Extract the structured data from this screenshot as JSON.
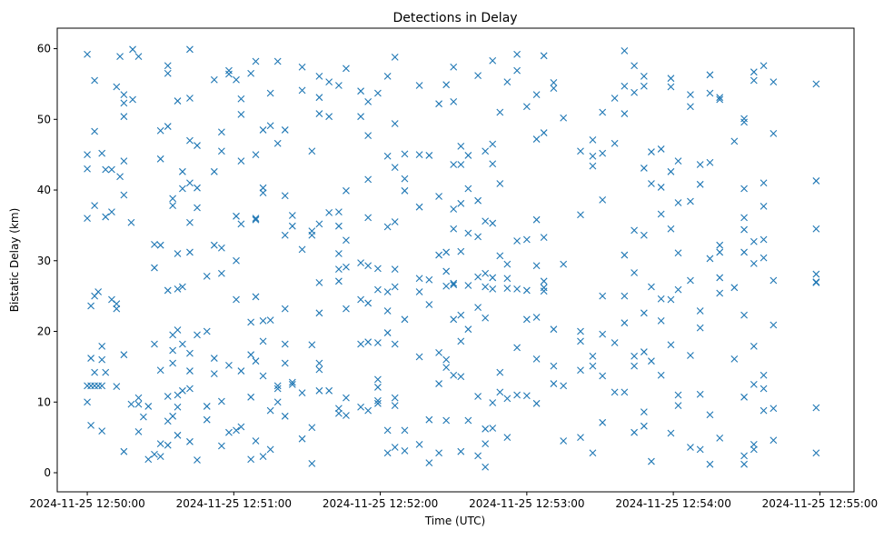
{
  "chart_data": {
    "type": "scatter",
    "title": "Detections in Delay",
    "xlabel": "Time (UTC)",
    "ylabel": "Bistatic Delay (km)",
    "x_origin": "2024-11-25 12:50:00",
    "x_units": "seconds since 2024-11-25 12:50:00",
    "xlim": [
      -12.3,
      314
    ],
    "ylim": [
      -2.7,
      62.9
    ],
    "grid": false,
    "marker": "x",
    "color": "#1f77b4",
    "x_ticks": [
      {
        "value": 0,
        "label": "2024-11-25 12:50:00"
      },
      {
        "value": 60,
        "label": "2024-11-25 12:51:00"
      },
      {
        "value": 120,
        "label": "2024-11-25 12:52:00"
      },
      {
        "value": 180,
        "label": "2024-11-25 12:53:00"
      },
      {
        "value": 240,
        "label": "2024-11-25 12:54:00"
      },
      {
        "value": 300,
        "label": "2024-11-25 12:55:00"
      }
    ],
    "y_ticks": [
      {
        "value": 0,
        "label": "0"
      },
      {
        "value": 10,
        "label": "10"
      },
      {
        "value": 20,
        "label": "20"
      },
      {
        "value": 30,
        "label": "30"
      },
      {
        "value": 40,
        "label": "40"
      },
      {
        "value": 50,
        "label": "50"
      },
      {
        "value": 60,
        "label": "60"
      }
    ],
    "points_by_time": [
      [
        0,
        [
          59.2,
          45,
          43,
          36,
          10,
          12.3
        ]
      ],
      [
        1.5,
        [
          23.6,
          6.7,
          16.2,
          12.3
        ]
      ],
      [
        3,
        [
          55.5,
          48.3,
          37.8,
          25,
          14.2,
          12.3
        ]
      ],
      [
        4.5,
        [
          25.6,
          12.3
        ]
      ],
      [
        6,
        [
          45.2,
          12.3,
          17.9,
          16,
          5.9
        ]
      ],
      [
        7.5,
        [
          42.9,
          36.2,
          14.2
        ]
      ],
      [
        10,
        [
          42.9,
          36.9,
          24.5
        ]
      ],
      [
        12,
        [
          54.6,
          23.9,
          12.2,
          23.2
        ]
      ],
      [
        13.4,
        [
          58.9,
          41.9
        ]
      ],
      [
        15,
        [
          52.3,
          53.5,
          50.4,
          44.1,
          39.3,
          16.7,
          3
        ]
      ],
      [
        18,
        [
          35.4,
          9.7
        ]
      ],
      [
        18.6,
        [
          59.9,
          52.8
        ]
      ],
      [
        21,
        [
          58.9,
          10.6,
          9.7,
          5.8
        ]
      ],
      [
        23,
        [
          7.9
        ]
      ],
      [
        25,
        [
          9.4,
          1.9
        ]
      ],
      [
        27.5,
        [
          32.3,
          29,
          18.2,
          2.6
        ]
      ],
      [
        30,
        [
          48.4,
          44.4,
          32.2,
          14.5,
          2.3,
          4.1
        ]
      ],
      [
        33,
        [
          56.5,
          57.6,
          49,
          25.8,
          10.8,
          7.3,
          3.9
        ]
      ],
      [
        35,
        [
          38.8,
          37.8,
          19.5,
          17.3,
          15.5,
          8
        ]
      ],
      [
        37,
        [
          52.6,
          31,
          26,
          20.2,
          11,
          9.3,
          5.3
        ]
      ],
      [
        39,
        [
          42.6,
          40.2,
          26.3,
          18.2,
          11.6
        ]
      ],
      [
        42,
        [
          59.9,
          53,
          47,
          41,
          35.4,
          31.2,
          11.9,
          14.4,
          16.9,
          4.4
        ]
      ],
      [
        45,
        [
          46.3,
          40.3,
          37.5,
          19.5,
          1.8
        ]
      ],
      [
        49,
        [
          27.8,
          20,
          9.4,
          7.5
        ]
      ],
      [
        52,
        [
          55.6,
          42.6,
          32.2,
          16.2,
          14
        ]
      ],
      [
        55,
        [
          45.5,
          48.2,
          31.8,
          28.2,
          10.1,
          3.8
        ]
      ],
      [
        58,
        [
          56.4,
          56.9,
          15.2,
          5.7
        ]
      ],
      [
        61,
        [
          55.6,
          36.3,
          24.5,
          6,
          30
        ]
      ],
      [
        63,
        [
          52.9,
          50.7,
          35.2,
          44.1,
          14.4,
          6.5
        ]
      ],
      [
        67,
        [
          56.5,
          21.3,
          16.7,
          10.7,
          1.9
        ]
      ],
      [
        69,
        [
          58.2,
          45,
          36,
          35.8,
          24.9,
          15.8,
          4.5
        ]
      ],
      [
        72,
        [
          48.5,
          40.3,
          39.6,
          18.6,
          13.7,
          2.3,
          21.5
        ]
      ],
      [
        75,
        [
          53.7,
          49.1,
          21.6,
          8.8,
          3.3
        ]
      ],
      [
        78,
        [
          58.2,
          46.6,
          12.3,
          11.9,
          10
        ]
      ],
      [
        81,
        [
          33.6,
          39.2,
          48.5,
          23.2,
          18.2,
          15.5,
          8
        ]
      ],
      [
        84,
        [
          36.4,
          34.9,
          12.5,
          12.8
        ]
      ],
      [
        88,
        [
          57.4,
          54.1,
          31.6,
          11.3,
          4.8
        ]
      ],
      [
        92,
        [
          45.5,
          33.6,
          34.2,
          18.1,
          6.4,
          1.3
        ]
      ],
      [
        95,
        [
          56.1,
          53.1,
          50.8,
          35.2,
          26.9,
          22.6,
          11.6,
          14.6,
          15.5
        ]
      ],
      [
        99,
        [
          55.3,
          50.4,
          36.8,
          11.6
        ]
      ],
      [
        103,
        [
          54.8,
          36.9,
          34.9,
          31,
          28.8,
          27.1,
          9.1,
          8.4
        ]
      ],
      [
        106,
        [
          57.2,
          39.9,
          32.9,
          29.1,
          23.2,
          10.6,
          8.1
        ]
      ],
      [
        112,
        [
          54,
          50.4,
          29.7,
          24.5,
          18.2,
          9.3
        ]
      ],
      [
        115,
        [
          52.5,
          47.7,
          41.5,
          36.1,
          29.3,
          24,
          18.5,
          8.8
        ]
      ],
      [
        119,
        [
          53.7,
          28.9,
          25.9,
          18.4,
          12.1,
          13.2,
          10.2,
          9.8
        ]
      ],
      [
        123,
        [
          56.1,
          44.8,
          34.8,
          25.6,
          22.9,
          19.8,
          6,
          2.8
        ]
      ],
      [
        126,
        [
          58.8,
          49.4,
          43.2,
          35.5,
          28.8,
          26.3,
          18.2,
          9.5,
          10.6,
          3.6
        ]
      ],
      [
        130,
        [
          45.1,
          41.6,
          39.9,
          21.7,
          6,
          3.1
        ]
      ],
      [
        136,
        [
          54.8,
          45,
          37.6,
          27.5,
          25.6,
          16.4,
          4
        ]
      ],
      [
        140,
        [
          44.9,
          27.3,
          23.8,
          7.5,
          1.4
        ]
      ],
      [
        144,
        [
          52.2,
          39.1,
          30.8,
          17,
          12.6,
          2.8
        ]
      ],
      [
        147,
        [
          54.9,
          31.2,
          28.5,
          26.4,
          16,
          14.9,
          7.4
        ]
      ],
      [
        150,
        [
          52.5,
          57.4,
          43.6,
          37.3,
          34.5,
          26.6,
          26.8,
          21.7,
          13.8
        ]
      ],
      [
        153,
        [
          46.2,
          43.6,
          38.1,
          31.3,
          22.3,
          18.6,
          13.6,
          3
        ]
      ],
      [
        156,
        [
          44.9,
          40.2,
          33.9,
          26.5,
          20.3,
          7.4
        ]
      ],
      [
        160,
        [
          56.2,
          38.5,
          33.4,
          27.7,
          23.4,
          10.8,
          2.4
        ]
      ],
      [
        163,
        [
          45.5,
          35.6,
          28.2,
          26.3,
          21.9,
          0.8,
          4.1,
          6.2
        ]
      ],
      [
        166,
        [
          58.3,
          46.5,
          43.7,
          35.3,
          27.6,
          26,
          9.9,
          6.3
        ]
      ],
      [
        169,
        [
          51,
          40.9,
          30.7,
          14.2,
          11.4
        ]
      ],
      [
        172,
        [
          55.3,
          29.5,
          27.5,
          26.1,
          5,
          10.5
        ]
      ],
      [
        176,
        [
          59.2,
          56.9,
          32.8,
          26,
          17.7,
          11
        ]
      ],
      [
        180,
        [
          51.8,
          33,
          25.8,
          21.7,
          10.9
        ]
      ],
      [
        184,
        [
          53.5,
          47.2,
          35.8,
          29.3,
          22,
          16.1,
          9.8
        ]
      ],
      [
        187,
        [
          59,
          48.1,
          33.3,
          27.1,
          26.2,
          25.7
        ]
      ],
      [
        191,
        [
          55.2,
          54.4,
          20.3,
          12.6,
          15.1
        ]
      ],
      [
        195,
        [
          50.2,
          29.5,
          12.3,
          4.5
        ]
      ],
      [
        202,
        [
          45.5,
          36.5,
          20,
          18.6,
          14.5,
          5
        ]
      ],
      [
        207,
        [
          47.1,
          44.8,
          43.4,
          16.5,
          15.1,
          2.8
        ]
      ],
      [
        211,
        [
          51,
          45.2,
          38.6,
          25,
          19.6,
          13.7,
          7.1
        ]
      ],
      [
        216,
        [
          53,
          46.6,
          18.4,
          11.4
        ]
      ],
      [
        220,
        [
          59.7,
          54.7,
          50.8,
          30.8,
          25,
          21.2,
          11.4
        ]
      ],
      [
        224,
        [
          57.6,
          53.8,
          34.3,
          28.3,
          16.5,
          15.1,
          5.7
        ]
      ],
      [
        228,
        [
          56.1,
          54.7,
          43.1,
          33.6,
          22.6,
          17.1,
          8.6,
          6.6
        ]
      ],
      [
        231,
        [
          45.4,
          40.9,
          26.3,
          15.8,
          1.6
        ]
      ],
      [
        235,
        [
          45.8,
          40.4,
          36.6,
          24.6,
          21.5,
          13.8
        ]
      ],
      [
        239,
        [
          55.8,
          54.6,
          42.6,
          34.5,
          24.5,
          18.1,
          5.6
        ]
      ],
      [
        242,
        [
          44.1,
          38.2,
          31.1,
          25.9,
          11,
          9.5
        ]
      ],
      [
        247,
        [
          53.5,
          51.8,
          38.4,
          27.2,
          16.6,
          3.6
        ]
      ],
      [
        251,
        [
          43.6,
          40.8,
          22.9,
          20.5,
          11.1,
          3.3
        ]
      ],
      [
        255,
        [
          56.3,
          53.7,
          43.9,
          30.3,
          8.2,
          1.2
        ]
      ],
      [
        259,
        [
          52.8,
          53.1,
          31.2,
          32.2,
          27.6,
          25.4,
          4.9
        ]
      ],
      [
        265,
        [
          46.9,
          26.2,
          16.1
        ]
      ],
      [
        269,
        [
          50.1,
          49.6,
          40.2,
          36.1,
          34.4,
          31.2,
          22.3,
          10.7,
          2.4,
          1.2
        ]
      ],
      [
        273,
        [
          56.7,
          55.5,
          32.7,
          29.6,
          17.9,
          12.5,
          4,
          3.3
        ]
      ],
      [
        277,
        [
          57.6,
          41,
          37.7,
          33,
          30.4,
          13.8,
          11.9,
          8.8
        ]
      ],
      [
        281,
        [
          55.3,
          48,
          27.2,
          20.9,
          9.1,
          4.6
        ]
      ],
      [
        298.5,
        [
          55,
          41.3,
          34.5,
          28.1,
          27,
          26.9,
          9.2,
          2.8
        ]
      ]
    ]
  }
}
